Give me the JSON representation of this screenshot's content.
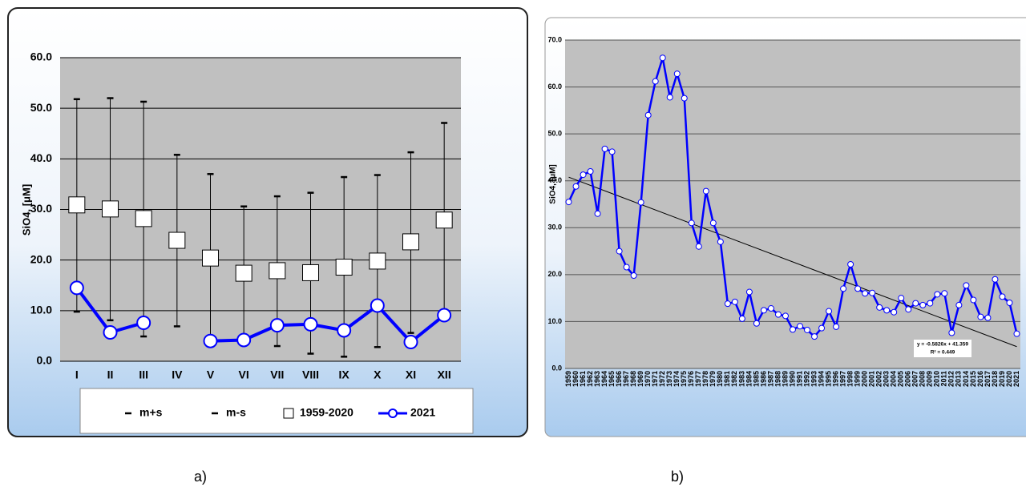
{
  "chart_data": [
    {
      "type": "errorbar-line",
      "caption": "a)",
      "y_label": "SiO4, [μM]",
      "categories": [
        "I",
        "II",
        "III",
        "IV",
        "V",
        "VI",
        "VII",
        "VIII",
        "IX",
        "X",
        "XI",
        "XII"
      ],
      "series": [
        {
          "name": "m+s",
          "color": "#000000",
          "values": [
            51.8,
            52.0,
            51.3,
            40.8,
            37.0,
            30.6,
            32.6,
            33.3,
            36.4,
            36.8,
            41.3,
            47.1
          ]
        },
        {
          "name": "m-s",
          "color": "#000000",
          "values": [
            9.8,
            8.1,
            4.9,
            6.9,
            3.7,
            3.9,
            3.0,
            1.5,
            0.9,
            2.8,
            5.6,
            8.5
          ]
        },
        {
          "name": "1959-2020",
          "color": "#ffffff",
          "values": [
            30.9,
            30.1,
            28.2,
            23.9,
            20.4,
            17.4,
            17.9,
            17.5,
            18.6,
            19.8,
            23.6,
            27.9
          ]
        },
        {
          "name": "2021",
          "color": "#0000ff",
          "values": [
            14.5,
            5.7,
            7.6,
            null,
            4.0,
            4.2,
            7.1,
            7.3,
            6.1,
            11.0,
            3.8,
            9.1
          ]
        }
      ],
      "ylim": [
        0,
        60
      ],
      "yticks": [
        {
          "value": 0,
          "label": "0.0"
        },
        {
          "value": 10,
          "label": "10.0"
        },
        {
          "value": 20,
          "label": "20.0"
        },
        {
          "value": 30,
          "label": "30.0"
        },
        {
          "value": 40,
          "label": "40.0"
        },
        {
          "value": 50,
          "label": "50.0"
        },
        {
          "value": 60,
          "label": "60.0"
        }
      ],
      "grid": true
    },
    {
      "type": "line",
      "caption": "b)",
      "y_label": "SiO4, [μM]",
      "categories": [
        "1959",
        "1960",
        "1961",
        "1962",
        "1963",
        "1964",
        "1965",
        "1966",
        "1967",
        "1968",
        "1969",
        "1970",
        "1971",
        "1972",
        "1973",
        "1974",
        "1975",
        "1976",
        "1977",
        "1978",
        "1979",
        "1980",
        "1981",
        "1982",
        "1983",
        "1984",
        "1985",
        "1986",
        "1987",
        "1988",
        "1989",
        "1990",
        "1991",
        "1992",
        "1993",
        "1994",
        "1995",
        "1996",
        "1997",
        "1998",
        "1999",
        "2000",
        "2001",
        "2002",
        "2003",
        "2004",
        "2005",
        "2006",
        "2007",
        "2008",
        "2009",
        "2010",
        "2011",
        "2012",
        "2013",
        "2014",
        "2015",
        "2016",
        "2017",
        "2018",
        "2019",
        "2020",
        "2021"
      ],
      "color": "#0000ff",
      "values": [
        35.5,
        38.8,
        41.3,
        42.0,
        33.0,
        46.8,
        46.2,
        25.0,
        21.6,
        19.8,
        35.4,
        54.0,
        61.2,
        66.2,
        57.8,
        62.8,
        57.6,
        31.0,
        26.0,
        37.8,
        31.0,
        27.0,
        13.8,
        14.2,
        10.6,
        16.3,
        9.6,
        12.4,
        12.8,
        11.5,
        11.2,
        8.3,
        9.0,
        8.2,
        6.8,
        8.6,
        12.2,
        8.9,
        17.0,
        22.2,
        17.0,
        16.0,
        16.1,
        13.0,
        12.4,
        12.0,
        15.0,
        12.6,
        13.9,
        13.5,
        13.9,
        15.8,
        16.0,
        7.6,
        13.5,
        17.7,
        14.6,
        11.0,
        10.8,
        19.0,
        15.3,
        14.0,
        7.4
      ],
      "trend": {
        "slope": -0.5826,
        "intercept": 41.359,
        "equation": "y = -0.5826x + 41.359",
        "r2": "R² = 0.449"
      },
      "ylim": [
        0,
        70
      ],
      "yticks": [
        {
          "value": 0,
          "label": "0.0"
        },
        {
          "value": 10,
          "label": "10.0"
        },
        {
          "value": 20,
          "label": "20.0"
        },
        {
          "value": 30,
          "label": "30.0"
        },
        {
          "value": 40,
          "label": "40.0"
        },
        {
          "value": 50,
          "label": "50.0"
        },
        {
          "value": 60,
          "label": "60.0"
        },
        {
          "value": 70,
          "label": "70.0"
        }
      ],
      "grid": true
    }
  ]
}
